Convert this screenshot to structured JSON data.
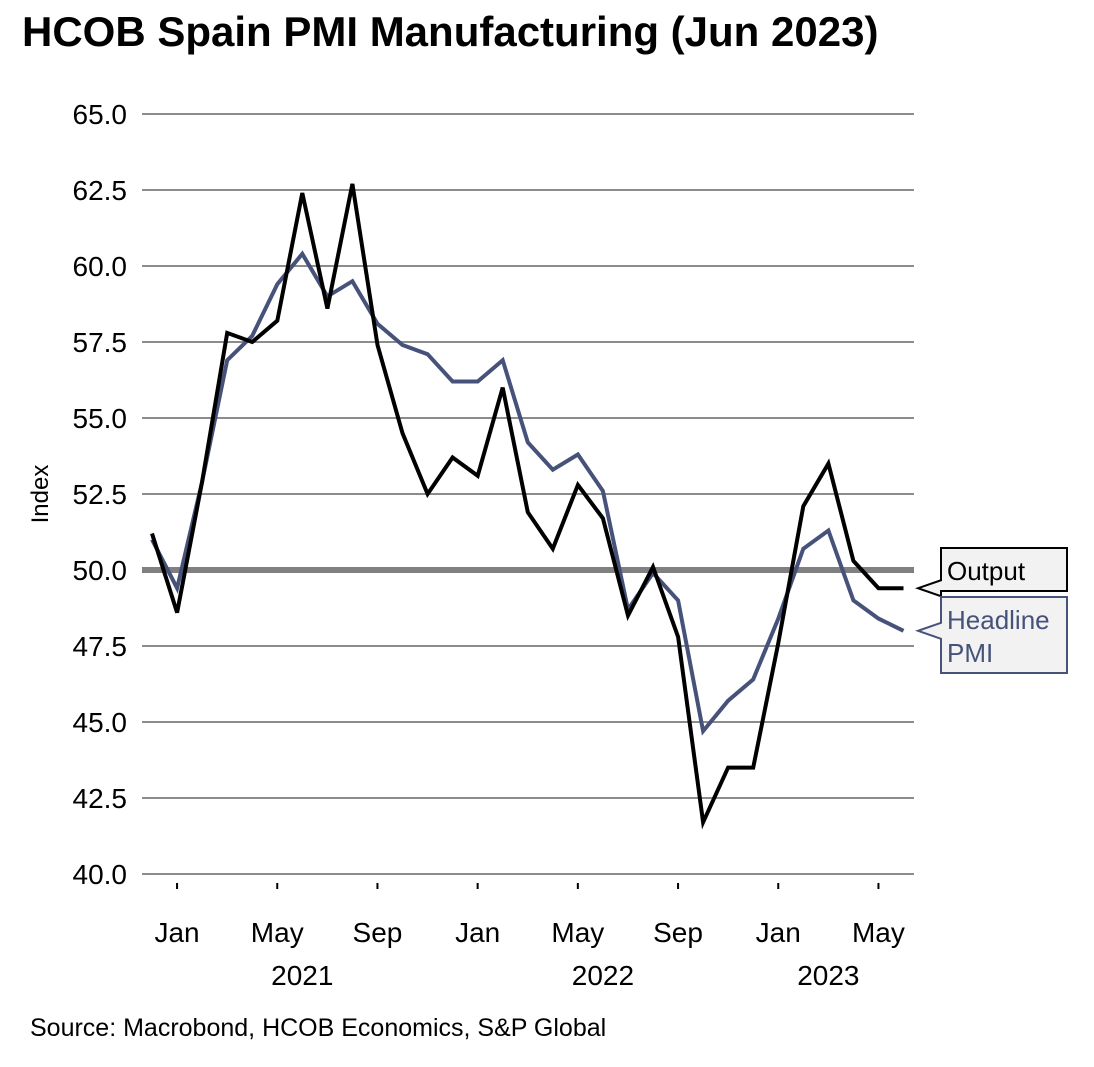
{
  "chart_data": {
    "type": "line",
    "title": "HCOB Spain PMI Manufacturing (Jun 2023)",
    "ylabel": "Index",
    "xlabel": "",
    "ylim": [
      40.0,
      65.0
    ],
    "y_ticks": [
      "40.0",
      "42.5",
      "45.0",
      "47.5",
      "50.0",
      "52.5",
      "55.0",
      "57.5",
      "60.0",
      "62.5",
      "65.0"
    ],
    "reference_line": 50.0,
    "x": [
      "2020-12",
      "2021-01",
      "2021-02",
      "2021-03",
      "2021-04",
      "2021-05",
      "2021-06",
      "2021-07",
      "2021-08",
      "2021-09",
      "2021-10",
      "2021-11",
      "2021-12",
      "2022-01",
      "2022-02",
      "2022-03",
      "2022-04",
      "2022-05",
      "2022-06",
      "2022-07",
      "2022-08",
      "2022-09",
      "2022-10",
      "2022-11",
      "2022-12",
      "2023-01",
      "2023-02",
      "2023-03",
      "2023-04",
      "2023-05",
      "2023-06"
    ],
    "month_labels": [
      {
        "label": "Jan",
        "x": "2021-01"
      },
      {
        "label": "May",
        "x": "2021-05"
      },
      {
        "label": "Sep",
        "x": "2021-09"
      },
      {
        "label": "Jan",
        "x": "2022-01"
      },
      {
        "label": "May",
        "x": "2022-05"
      },
      {
        "label": "Sep",
        "x": "2022-09"
      },
      {
        "label": "Jan",
        "x": "2023-01"
      },
      {
        "label": "May",
        "x": "2023-05"
      }
    ],
    "year_labels": [
      {
        "label": "2021",
        "x": "2021-06"
      },
      {
        "label": "2022",
        "x": "2022-06"
      },
      {
        "label": "2023",
        "x": "2023-03"
      }
    ],
    "series": [
      {
        "name": "Output",
        "color": "#000000",
        "values": [
          51.2,
          48.6,
          52.9,
          57.8,
          57.5,
          58.2,
          62.4,
          58.6,
          62.7,
          57.4,
          54.5,
          52.5,
          53.7,
          53.1,
          56.0,
          51.9,
          50.7,
          52.8,
          51.7,
          48.5,
          50.1,
          47.8,
          41.7,
          43.5,
          43.5,
          47.6,
          52.1,
          53.5,
          50.3,
          49.4,
          49.4
        ]
      },
      {
        "name": "Headline PMI",
        "legend_lines": [
          "Headline",
          "PMI"
        ],
        "color": "#46527a",
        "values": [
          51.0,
          49.4,
          52.9,
          56.9,
          57.7,
          59.4,
          60.4,
          59.0,
          59.5,
          58.1,
          57.4,
          57.1,
          56.2,
          56.2,
          56.9,
          54.2,
          53.3,
          53.8,
          52.6,
          48.7,
          49.9,
          49.0,
          44.7,
          45.7,
          46.4,
          48.4,
          50.7,
          51.3,
          49.0,
          48.4,
          48.0
        ]
      }
    ]
  },
  "source": "Source: Macrobond, HCOB Economics, S&P Global"
}
